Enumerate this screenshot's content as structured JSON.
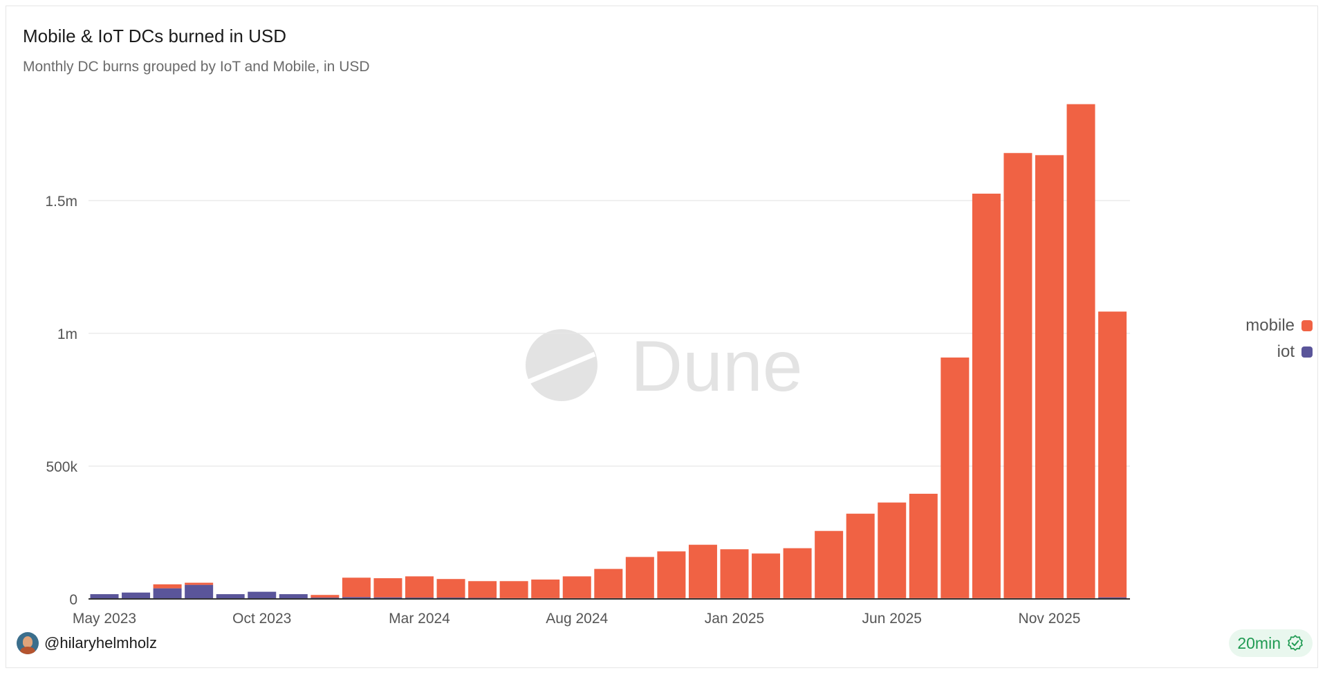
{
  "header": {
    "title": "Mobile & IoT DCs burned in USD",
    "subtitle": "Monthly DC burns grouped by IoT and Mobile, in USD"
  },
  "legend": [
    {
      "label": "mobile",
      "color": "#f06244"
    },
    {
      "label": "iot",
      "color": "#5a559a"
    }
  ],
  "watermark": "Dune",
  "footer": {
    "author": "@hilaryhelmholz",
    "refresh": "20min",
    "refresh_icon": "verified-check-icon"
  },
  "colors": {
    "mobile": "#f06244",
    "iot": "#5a559a",
    "grid": "#e6e6e6",
    "axis": "#333333"
  },
  "chart_data": {
    "type": "bar",
    "stacked": true,
    "categories": [
      "May 2023",
      "Jun 2023",
      "Jul 2023",
      "Aug 2023",
      "Sep 2023",
      "Oct 2023",
      "Nov 2023",
      "Dec 2023",
      "Jan 2024",
      "Feb 2024",
      "Mar 2024",
      "Apr 2024",
      "May 2024",
      "Jun 2024",
      "Jul 2024",
      "Aug 2024",
      "Sep 2024",
      "Oct 2024",
      "Nov 2024",
      "Dec 2024",
      "Jan 2025",
      "Feb 2025",
      "Mar 2025",
      "Apr 2025",
      "May 2025",
      "Jun 2025",
      "Jul 2025",
      "Aug 2025",
      "Sep 2025",
      "Oct 2025",
      "Nov 2025",
      "Dec 2025",
      "Jan 2026"
    ],
    "x_tick_labels": [
      "May 2023",
      "Oct 2023",
      "Mar 2024",
      "Aug 2024",
      "Jan 2025",
      "Jun 2025",
      "Nov 2025"
    ],
    "y_tick_labels": [
      "0",
      "500k",
      "1m",
      "1.5m"
    ],
    "y_ticks": [
      0,
      500000,
      1000000,
      1500000
    ],
    "ylim": [
      0,
      1900000
    ],
    "grid": true,
    "legend_position": "right",
    "series": [
      {
        "name": "mobile",
        "values": [
          0,
          0,
          15000,
          8000,
          0,
          0,
          0,
          10000,
          73000,
          72000,
          80000,
          70000,
          63000,
          64000,
          70000,
          82000,
          110000,
          155000,
          176000,
          201000,
          184000,
          168000,
          188000,
          253000,
          318000,
          360000,
          393000,
          906000,
          1523000,
          1676000,
          1668000,
          1860000,
          1076000
        ]
      },
      {
        "name": "iot",
        "values": [
          18000,
          24000,
          40000,
          53000,
          18000,
          27000,
          18000,
          5000,
          7000,
          6000,
          5000,
          5000,
          4000,
          3000,
          3000,
          3000,
          3000,
          3000,
          3000,
          3000,
          3000,
          3000,
          3000,
          3000,
          3000,
          3000,
          3000,
          3000,
          3000,
          3000,
          3000,
          3000,
          6000
        ]
      }
    ]
  }
}
